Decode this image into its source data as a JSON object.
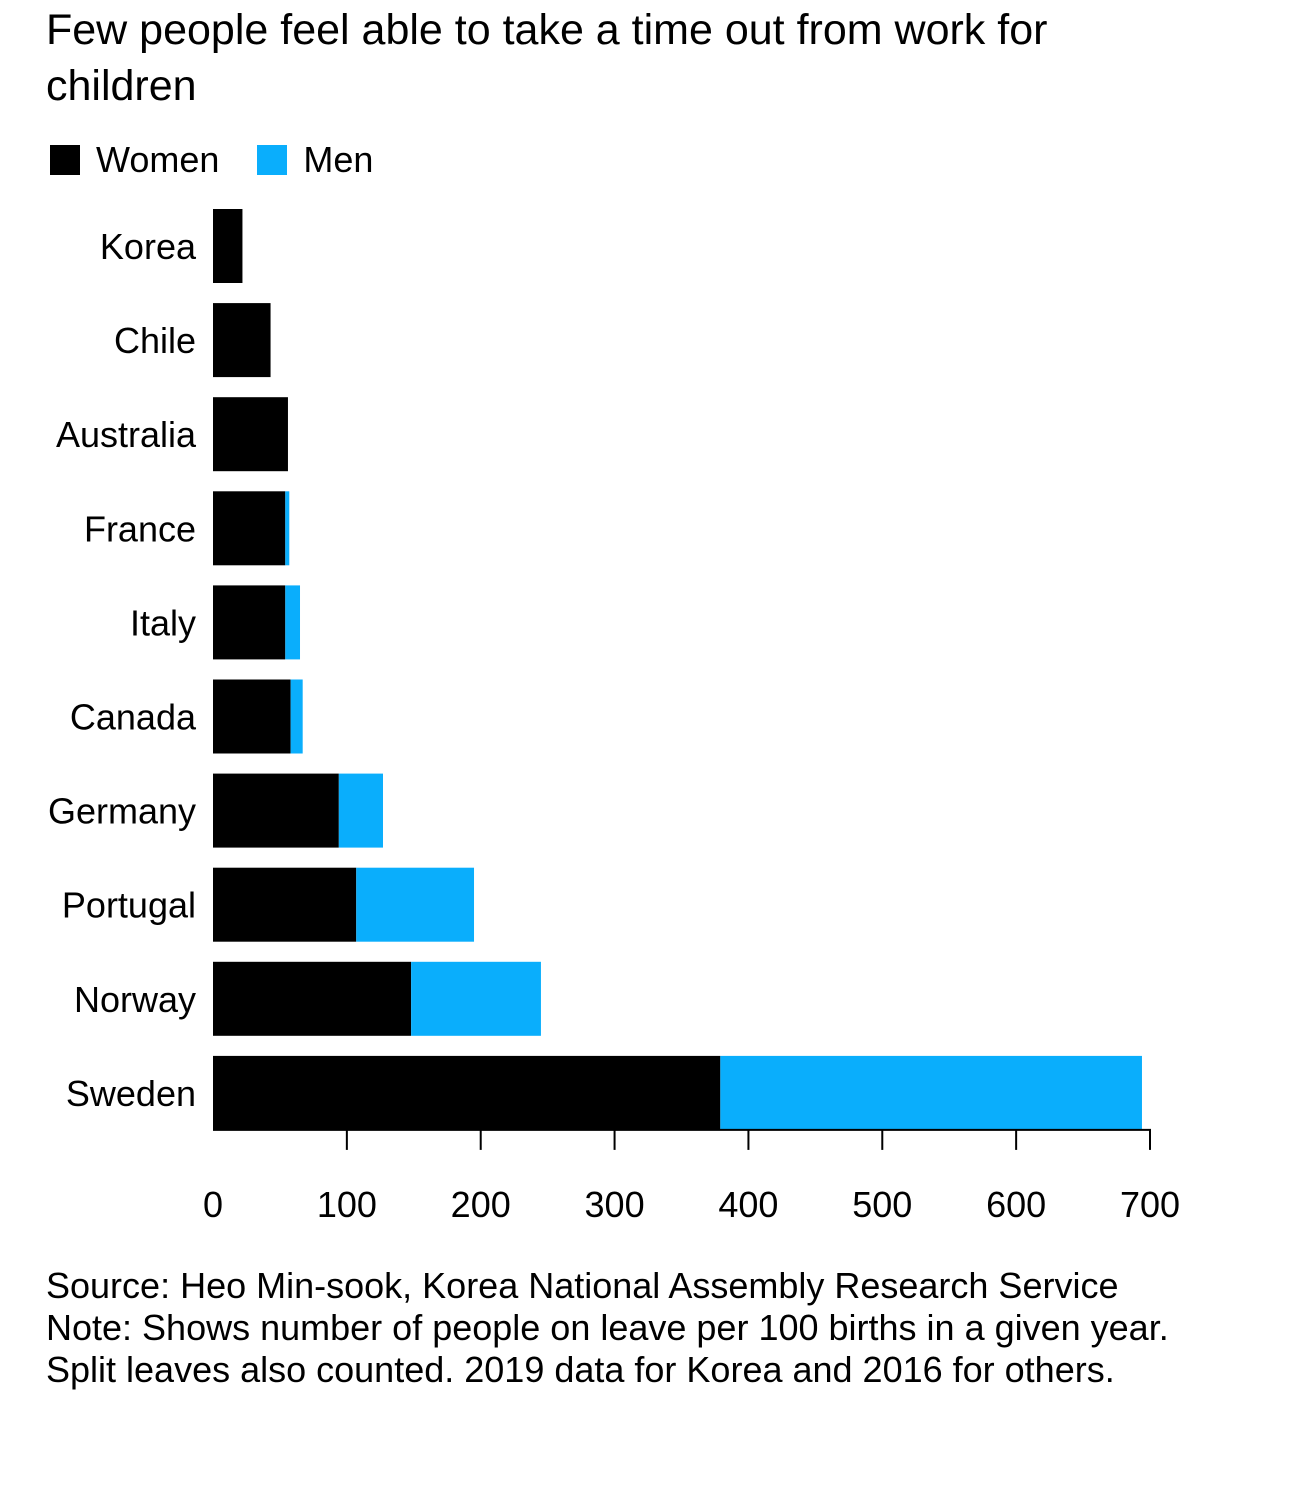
{
  "colors": {
    "women": "#000000",
    "men": "#0aaefc",
    "axis": "#000000"
  },
  "chart_data": {
    "type": "bar",
    "orientation": "horizontal",
    "stacked": true,
    "title": "Few people feel able to take a time out from work for children",
    "categories": [
      "Korea",
      "Chile",
      "Australia",
      "France",
      "Italy",
      "Canada",
      "Germany",
      "Portugal",
      "Norway",
      "Sweden"
    ],
    "series": [
      {
        "name": "Women",
        "values": [
          22,
          43,
          56,
          54,
          54,
          58,
          94,
          107,
          148,
          379
        ]
      },
      {
        "name": "Men",
        "values": [
          0,
          0,
          0,
          3,
          11,
          9,
          33,
          88,
          97,
          315
        ]
      }
    ],
    "xlabel": "",
    "ylabel": "",
    "xlim": [
      0,
      700
    ],
    "xticks": [
      0,
      100,
      200,
      300,
      400,
      500,
      600,
      700
    ],
    "grid": false,
    "legend_position": "top-left"
  },
  "footer": {
    "source": "Source: Heo Min-sook, Korea National Assembly Research Service",
    "note": "Note: Shows number of people on leave per 100 births in a given year. Split leaves also counted. 2019 data for Korea and 2016 for others."
  }
}
